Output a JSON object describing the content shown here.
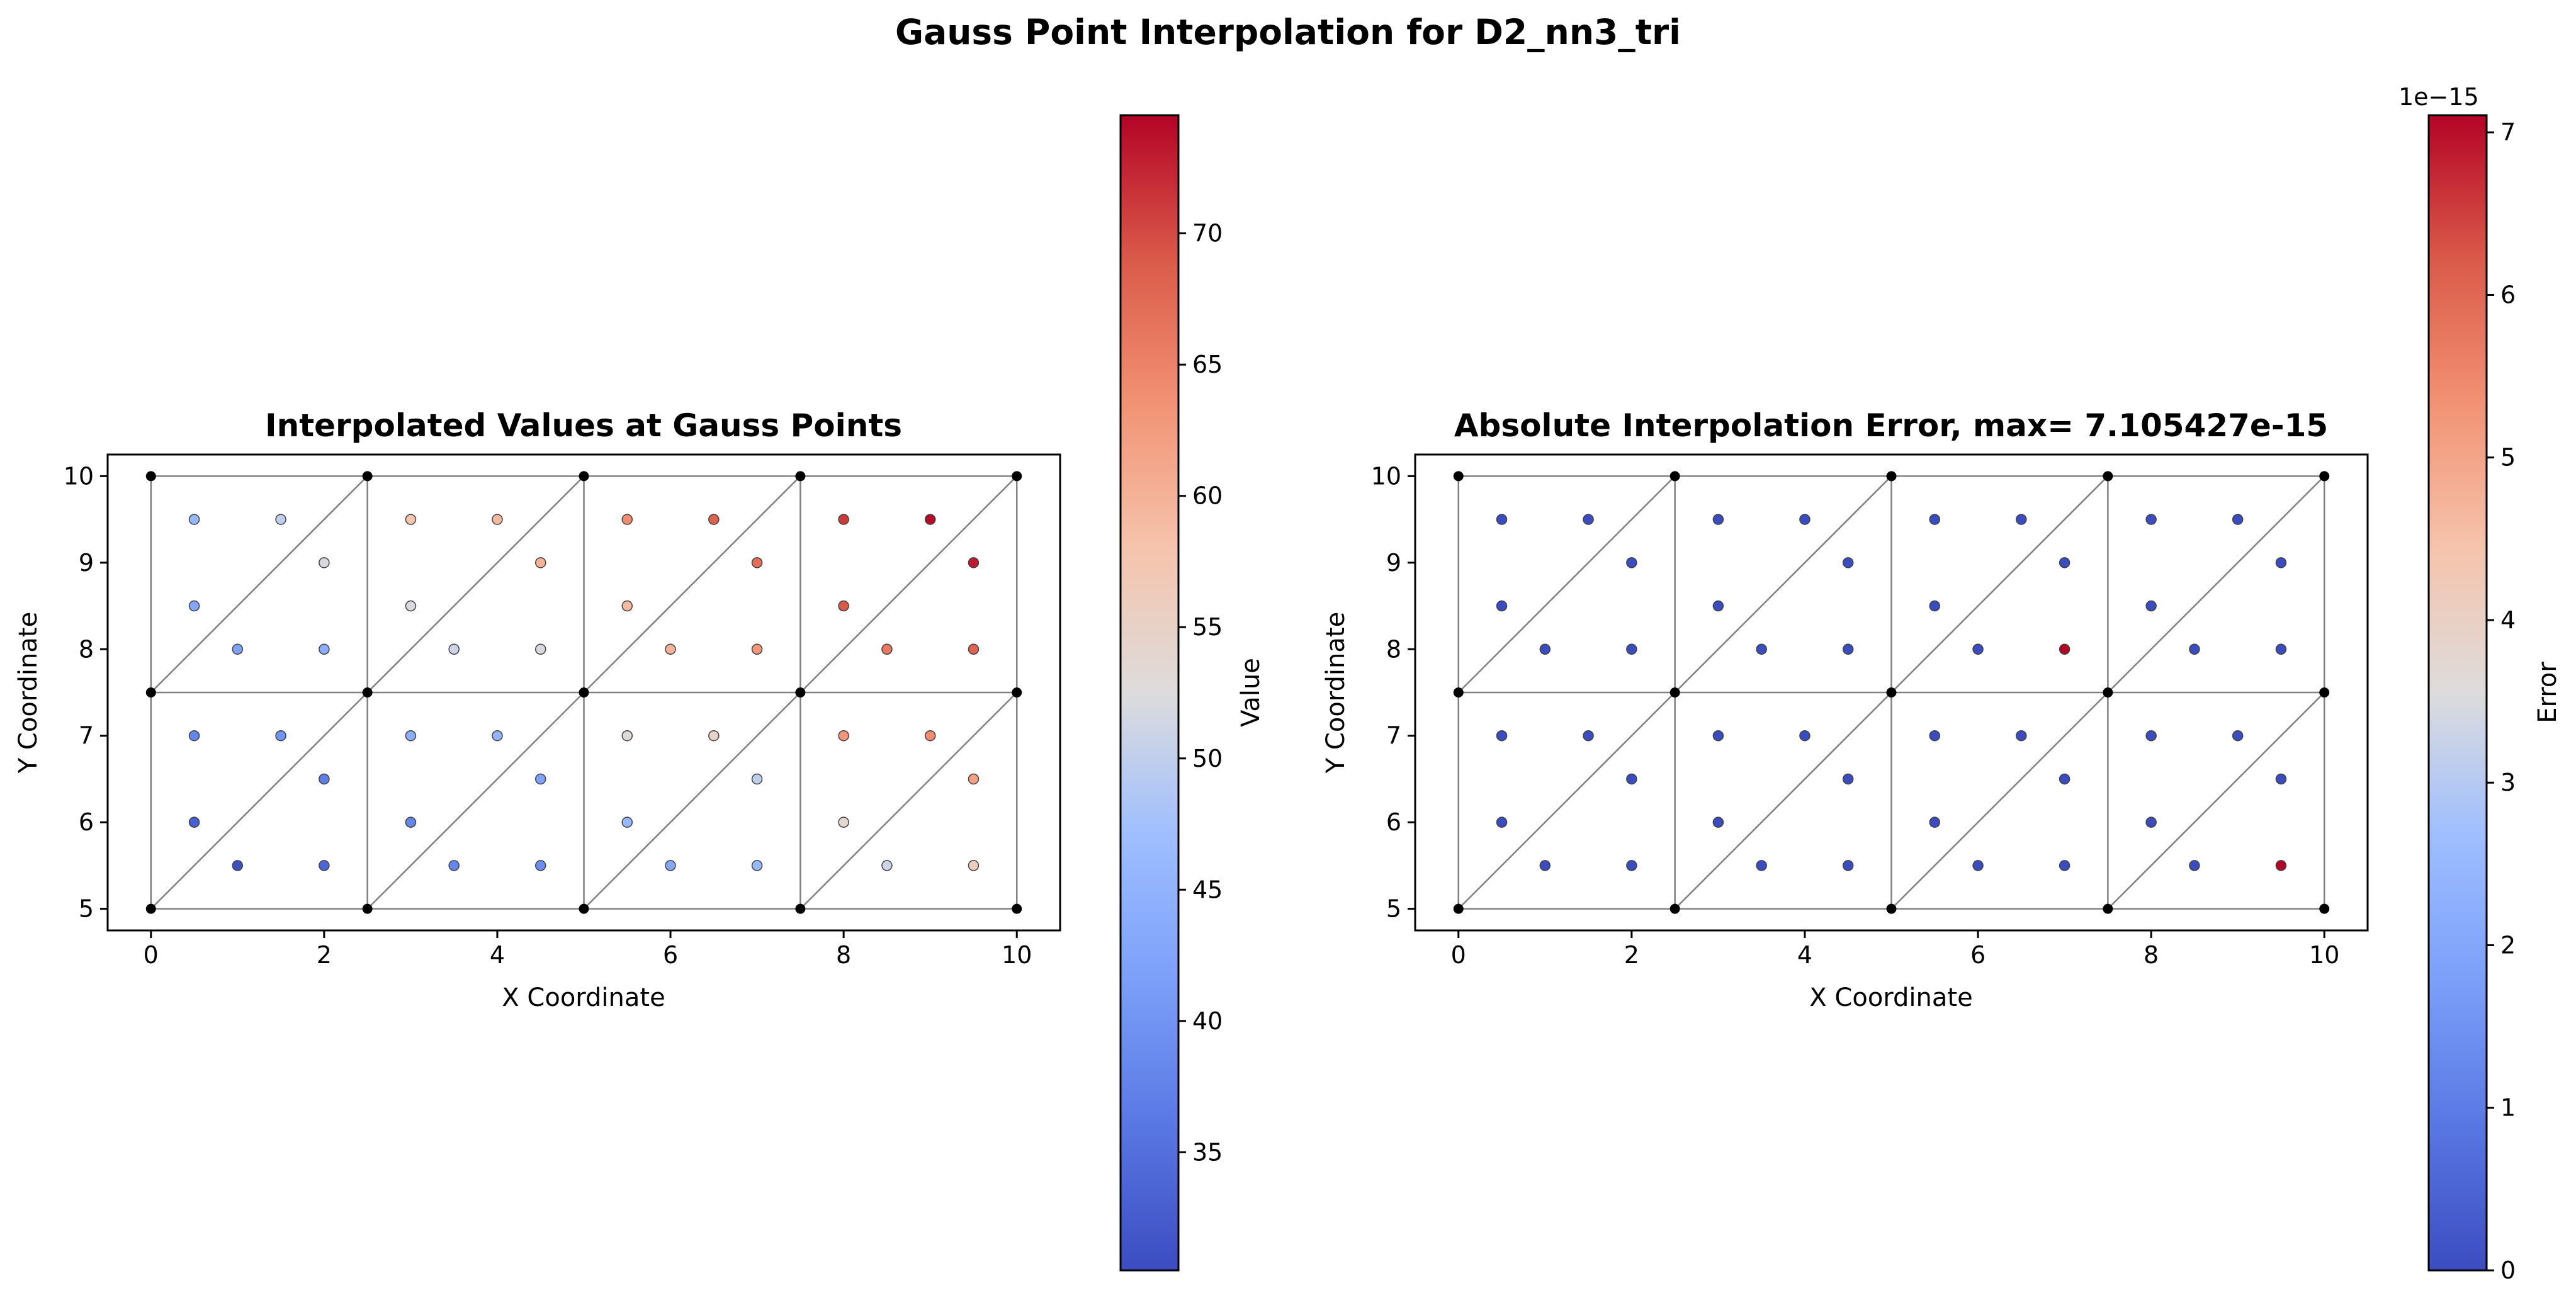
{
  "figure": {
    "title": "Gauss Point Interpolation for D2_nn3_tri"
  },
  "colors": {
    "colormap": "coolwarm",
    "mesh_line": "#808080",
    "node": "#000000",
    "background": "#ffffff"
  },
  "chart_data": [
    {
      "type": "scatter",
      "title": "Interpolated Values at Gauss Points",
      "xlabel": "X Coordinate",
      "ylabel": "Y Coordinate",
      "xlim": [
        -0.5,
        10.5
      ],
      "ylim": [
        4.75,
        10.25
      ],
      "xticks": [
        "0",
        "2",
        "4",
        "6",
        "8",
        "10"
      ],
      "yticks": [
        "5",
        "6",
        "7",
        "8",
        "9",
        "10"
      ],
      "colorbar": {
        "label": "Value",
        "range": [
          30.5,
          74.5
        ],
        "ticks": [
          "35",
          "40",
          "45",
          "50",
          "55",
          "60",
          "65",
          "70"
        ],
        "offset_text": ""
      },
      "mesh": {
        "nodes_x": [
          0,
          2.5,
          5,
          7.5,
          10
        ],
        "nodes_y": [
          5,
          7.5,
          10
        ],
        "triangulation": "each rectangle split by diagonal from lower-left to upper-right"
      },
      "points": [
        {
          "x": 0.5,
          "y": 9.5,
          "v": 46
        },
        {
          "x": 1.5,
          "y": 9.5,
          "v": 50
        },
        {
          "x": 2,
          "y": 9,
          "v": 52
        },
        {
          "x": 0.5,
          "y": 8.5,
          "v": 43
        },
        {
          "x": 1,
          "y": 8,
          "v": 42
        },
        {
          "x": 2,
          "y": 8,
          "v": 44
        },
        {
          "x": 3,
          "y": 9.5,
          "v": 58
        },
        {
          "x": 4,
          "y": 9.5,
          "v": 59
        },
        {
          "x": 4.5,
          "y": 9,
          "v": 60
        },
        {
          "x": 3,
          "y": 8.5,
          "v": 52
        },
        {
          "x": 3.5,
          "y": 8,
          "v": 51
        },
        {
          "x": 4.5,
          "y": 8,
          "v": 52
        },
        {
          "x": 5.5,
          "y": 9.5,
          "v": 64
        },
        {
          "x": 6.5,
          "y": 9.5,
          "v": 68
        },
        {
          "x": 7,
          "y": 9,
          "v": 67
        },
        {
          "x": 5.5,
          "y": 8.5,
          "v": 59
        },
        {
          "x": 6,
          "y": 8,
          "v": 60
        },
        {
          "x": 7,
          "y": 8,
          "v": 63
        },
        {
          "x": 8,
          "y": 9.5,
          "v": 71
        },
        {
          "x": 9,
          "y": 9.5,
          "v": 74
        },
        {
          "x": 9.5,
          "y": 9,
          "v": 73
        },
        {
          "x": 8,
          "y": 8.5,
          "v": 69
        },
        {
          "x": 8.5,
          "y": 8,
          "v": 66
        },
        {
          "x": 9.5,
          "y": 8,
          "v": 68
        },
        {
          "x": 0.5,
          "y": 7,
          "v": 38
        },
        {
          "x": 1.5,
          "y": 7,
          "v": 40
        },
        {
          "x": 2,
          "y": 6.5,
          "v": 37
        },
        {
          "x": 0.5,
          "y": 6,
          "v": 33
        },
        {
          "x": 1,
          "y": 5.5,
          "v": 31
        },
        {
          "x": 2,
          "y": 5.5,
          "v": 34
        },
        {
          "x": 3,
          "y": 7,
          "v": 44
        },
        {
          "x": 4,
          "y": 7,
          "v": 45
        },
        {
          "x": 4.5,
          "y": 6.5,
          "v": 42
        },
        {
          "x": 3,
          "y": 6,
          "v": 38
        },
        {
          "x": 3.5,
          "y": 5.5,
          "v": 38
        },
        {
          "x": 4.5,
          "y": 5.5,
          "v": 39
        },
        {
          "x": 5.5,
          "y": 7,
          "v": 53
        },
        {
          "x": 6.5,
          "y": 7,
          "v": 55
        },
        {
          "x": 7,
          "y": 6.5,
          "v": 50
        },
        {
          "x": 5.5,
          "y": 6,
          "v": 46
        },
        {
          "x": 6,
          "y": 5.5,
          "v": 43
        },
        {
          "x": 7,
          "y": 5.5,
          "v": 46
        },
        {
          "x": 8,
          "y": 7,
          "v": 63
        },
        {
          "x": 9,
          "y": 7,
          "v": 64
        },
        {
          "x": 9.5,
          "y": 6.5,
          "v": 62
        },
        {
          "x": 8,
          "y": 6,
          "v": 54
        },
        {
          "x": 8.5,
          "y": 5.5,
          "v": 51
        },
        {
          "x": 9.5,
          "y": 5.5,
          "v": 56
        }
      ]
    },
    {
      "type": "scatter",
      "title": "Absolute Interpolation Error, max= 7.105427e-15",
      "xlabel": "X Coordinate",
      "ylabel": "Y Coordinate",
      "xlim": [
        -0.5,
        10.5
      ],
      "ylim": [
        4.75,
        10.25
      ],
      "xticks": [
        "0",
        "2",
        "4",
        "6",
        "8",
        "10"
      ],
      "yticks": [
        "5",
        "6",
        "7",
        "8",
        "9",
        "10"
      ],
      "colorbar": {
        "label": "Error",
        "range": [
          0,
          7.105427
        ],
        "ticks": [
          "0",
          "1",
          "2",
          "3",
          "4",
          "5",
          "6",
          "7"
        ],
        "offset_text": "1e−15"
      },
      "mesh": {
        "nodes_x": [
          0,
          2.5,
          5,
          7.5,
          10
        ],
        "nodes_y": [
          5,
          7.5,
          10
        ],
        "triangulation": "each rectangle split by diagonal from lower-left to upper-right"
      },
      "points": [
        {
          "x": 0.5,
          "y": 9.5,
          "v": 0
        },
        {
          "x": 1.5,
          "y": 9.5,
          "v": 0
        },
        {
          "x": 2,
          "y": 9,
          "v": 0
        },
        {
          "x": 0.5,
          "y": 8.5,
          "v": 0
        },
        {
          "x": 1,
          "y": 8,
          "v": 0
        },
        {
          "x": 2,
          "y": 8,
          "v": 0
        },
        {
          "x": 3,
          "y": 9.5,
          "v": 0
        },
        {
          "x": 4,
          "y": 9.5,
          "v": 0
        },
        {
          "x": 4.5,
          "y": 9,
          "v": 0
        },
        {
          "x": 3,
          "y": 8.5,
          "v": 0
        },
        {
          "x": 3.5,
          "y": 8,
          "v": 0
        },
        {
          "x": 4.5,
          "y": 8,
          "v": 0
        },
        {
          "x": 5.5,
          "y": 9.5,
          "v": 0
        },
        {
          "x": 6.5,
          "y": 9.5,
          "v": 0
        },
        {
          "x": 7,
          "y": 9,
          "v": 0
        },
        {
          "x": 5.5,
          "y": 8.5,
          "v": 0
        },
        {
          "x": 6,
          "y": 8,
          "v": 0
        },
        {
          "x": 7,
          "y": 8,
          "v": 7.105427
        },
        {
          "x": 8,
          "y": 9.5,
          "v": 0
        },
        {
          "x": 9,
          "y": 9.5,
          "v": 0
        },
        {
          "x": 9.5,
          "y": 9,
          "v": 0
        },
        {
          "x": 8,
          "y": 8.5,
          "v": 0
        },
        {
          "x": 8.5,
          "y": 8,
          "v": 0
        },
        {
          "x": 9.5,
          "y": 8,
          "v": 0
        },
        {
          "x": 0.5,
          "y": 7,
          "v": 0
        },
        {
          "x": 1.5,
          "y": 7,
          "v": 0
        },
        {
          "x": 2,
          "y": 6.5,
          "v": 0
        },
        {
          "x": 0.5,
          "y": 6,
          "v": 0
        },
        {
          "x": 1,
          "y": 5.5,
          "v": 0
        },
        {
          "x": 2,
          "y": 5.5,
          "v": 0
        },
        {
          "x": 3,
          "y": 7,
          "v": 0
        },
        {
          "x": 4,
          "y": 7,
          "v": 0
        },
        {
          "x": 4.5,
          "y": 6.5,
          "v": 0
        },
        {
          "x": 3,
          "y": 6,
          "v": 0
        },
        {
          "x": 3.5,
          "y": 5.5,
          "v": 0
        },
        {
          "x": 4.5,
          "y": 5.5,
          "v": 0
        },
        {
          "x": 5.5,
          "y": 7,
          "v": 0
        },
        {
          "x": 6.5,
          "y": 7,
          "v": 0
        },
        {
          "x": 7,
          "y": 6.5,
          "v": 0
        },
        {
          "x": 5.5,
          "y": 6,
          "v": 0
        },
        {
          "x": 6,
          "y": 5.5,
          "v": 0
        },
        {
          "x": 7,
          "y": 5.5,
          "v": 0
        },
        {
          "x": 8,
          "y": 7,
          "v": 0
        },
        {
          "x": 9,
          "y": 7,
          "v": 0
        },
        {
          "x": 9.5,
          "y": 6.5,
          "v": 0
        },
        {
          "x": 8,
          "y": 6,
          "v": 0
        },
        {
          "x": 8.5,
          "y": 5.5,
          "v": 0
        },
        {
          "x": 9.5,
          "y": 5.5,
          "v": 7.105427
        }
      ]
    }
  ]
}
